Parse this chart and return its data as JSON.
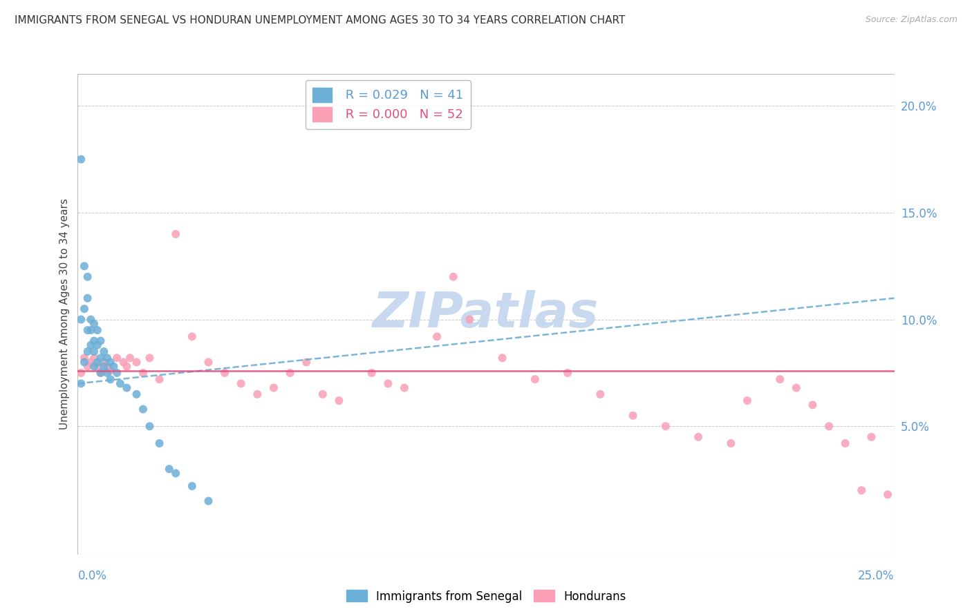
{
  "title": "IMMIGRANTS FROM SENEGAL VS HONDURAN UNEMPLOYMENT AMONG AGES 30 TO 34 YEARS CORRELATION CHART",
  "source": "Source: ZipAtlas.com",
  "ylabel": "Unemployment Among Ages 30 to 34 years",
  "right_yticks": [
    "20.0%",
    "15.0%",
    "10.0%",
    "5.0%"
  ],
  "right_ytick_vals": [
    0.2,
    0.15,
    0.1,
    0.05
  ],
  "xlim": [
    0.0,
    0.25
  ],
  "ylim": [
    -0.01,
    0.215
  ],
  "legend1_R": "0.029",
  "legend1_N": "41",
  "legend2_R": "0.000",
  "legend2_N": "52",
  "blue_color": "#6baed6",
  "pink_color": "#fa9fb5",
  "trend_blue_color": "#6baed6",
  "trend_pink_color": "#e05080",
  "blue_x": [
    0.001,
    0.001,
    0.001,
    0.002,
    0.002,
    0.002,
    0.003,
    0.003,
    0.003,
    0.003,
    0.004,
    0.004,
    0.004,
    0.005,
    0.005,
    0.005,
    0.005,
    0.006,
    0.006,
    0.006,
    0.007,
    0.007,
    0.007,
    0.008,
    0.008,
    0.009,
    0.009,
    0.01,
    0.01,
    0.011,
    0.012,
    0.013,
    0.015,
    0.018,
    0.02,
    0.022,
    0.025,
    0.028,
    0.03,
    0.035,
    0.04
  ],
  "blue_y": [
    0.175,
    0.1,
    0.07,
    0.125,
    0.105,
    0.08,
    0.12,
    0.11,
    0.095,
    0.085,
    0.1,
    0.095,
    0.088,
    0.098,
    0.09,
    0.085,
    0.078,
    0.095,
    0.088,
    0.08,
    0.09,
    0.082,
    0.075,
    0.085,
    0.078,
    0.082,
    0.075,
    0.08,
    0.072,
    0.078,
    0.075,
    0.07,
    0.068,
    0.065,
    0.058,
    0.05,
    0.042,
    0.03,
    0.028,
    0.022,
    0.015
  ],
  "pink_x": [
    0.001,
    0.002,
    0.003,
    0.004,
    0.005,
    0.006,
    0.007,
    0.008,
    0.009,
    0.01,
    0.012,
    0.014,
    0.015,
    0.016,
    0.018,
    0.02,
    0.022,
    0.025,
    0.03,
    0.035,
    0.04,
    0.045,
    0.05,
    0.055,
    0.06,
    0.065,
    0.07,
    0.075,
    0.08,
    0.09,
    0.095,
    0.1,
    0.11,
    0.115,
    0.12,
    0.13,
    0.14,
    0.15,
    0.16,
    0.17,
    0.18,
    0.19,
    0.2,
    0.205,
    0.215,
    0.22,
    0.225,
    0.23,
    0.235,
    0.24,
    0.243,
    0.248
  ],
  "pink_y": [
    0.075,
    0.082,
    0.078,
    0.08,
    0.082,
    0.078,
    0.075,
    0.08,
    0.078,
    0.076,
    0.082,
    0.08,
    0.078,
    0.082,
    0.08,
    0.075,
    0.082,
    0.072,
    0.14,
    0.092,
    0.08,
    0.075,
    0.07,
    0.065,
    0.068,
    0.075,
    0.08,
    0.065,
    0.062,
    0.075,
    0.07,
    0.068,
    0.092,
    0.12,
    0.1,
    0.082,
    0.072,
    0.075,
    0.065,
    0.055,
    0.05,
    0.045,
    0.042,
    0.062,
    0.072,
    0.068,
    0.06,
    0.05,
    0.042,
    0.02,
    0.045,
    0.018
  ],
  "watermark": "ZIPatlas",
  "watermark_color": "#c8d8ee",
  "blue_trend_start_y": 0.07,
  "blue_trend_end_y": 0.11,
  "pink_trend_y": 0.076
}
